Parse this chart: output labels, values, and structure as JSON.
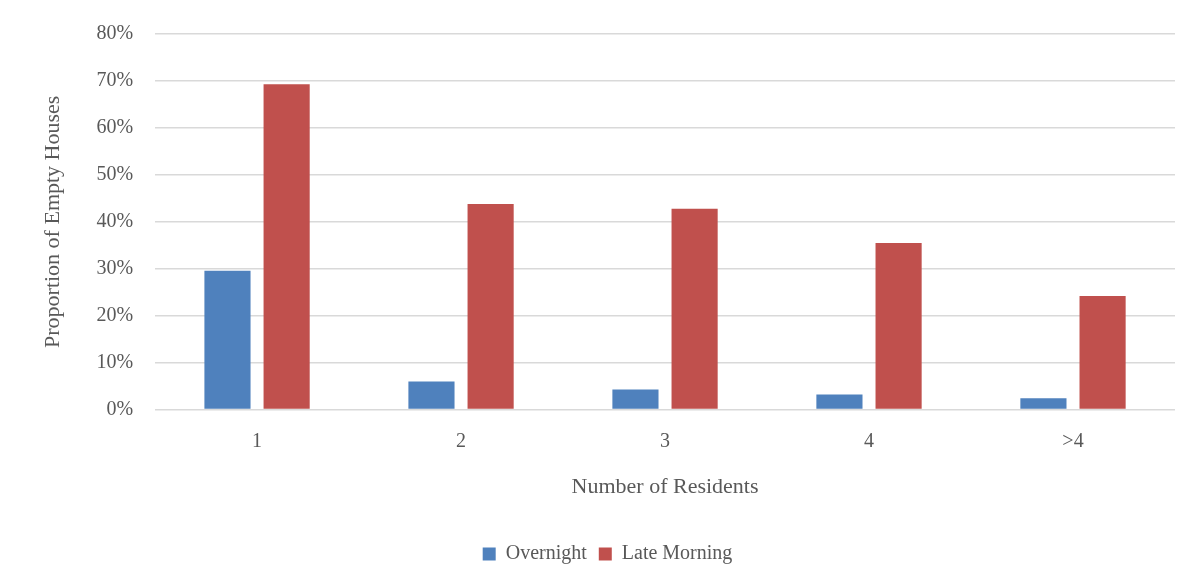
{
  "chart_data": {
    "type": "bar",
    "xlabel": "Number of Residents",
    "ylabel": "Proportion of Empty Houses",
    "categories": [
      "1",
      "2",
      "3",
      "4",
      ">4"
    ],
    "series": [
      {
        "name": "Overnight",
        "color": "#4f81bd",
        "values": [
          29.6,
          6.0,
          4.3,
          3.2,
          2.4
        ]
      },
      {
        "name": "Late Morning",
        "color": "#c0504d",
        "values": [
          69.3,
          43.8,
          42.8,
          35.5,
          24.2
        ]
      }
    ],
    "ylim": [
      0,
      80
    ],
    "yticks": [
      {
        "value": 0,
        "label": "0%"
      },
      {
        "value": 10,
        "label": "10%"
      },
      {
        "value": 20,
        "label": "20%"
      },
      {
        "value": 30,
        "label": "30%"
      },
      {
        "value": 40,
        "label": "40%"
      },
      {
        "value": 50,
        "label": "50%"
      },
      {
        "value": 60,
        "label": "60%"
      },
      {
        "value": 70,
        "label": "70%"
      },
      {
        "value": 80,
        "label": "80%"
      }
    ],
    "grid": "y",
    "legend": "bottom"
  }
}
